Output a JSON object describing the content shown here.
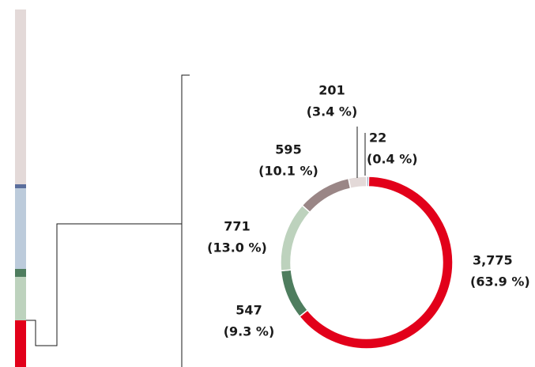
{
  "chart_data": {
    "type": "donut",
    "values": [
      22,
      3775,
      547,
      771,
      595,
      201
    ],
    "value_labels": [
      "22",
      "3,775",
      "547",
      "771",
      "595",
      "201"
    ],
    "percents": [
      0.4,
      63.9,
      9.3,
      13.0,
      10.1,
      3.4
    ],
    "percent_labels": [
      "(0.4 %)",
      "(63.9 %)",
      "(9.3 %)",
      "(13.0 %)",
      "(10.1 %)",
      "(3.4 %)"
    ],
    "colors": [
      "#5b6e9c",
      "#e2001a",
      "#4e7d5e",
      "#bdd2bd",
      "#9a8686",
      "#e3d9d8"
    ]
  }
}
